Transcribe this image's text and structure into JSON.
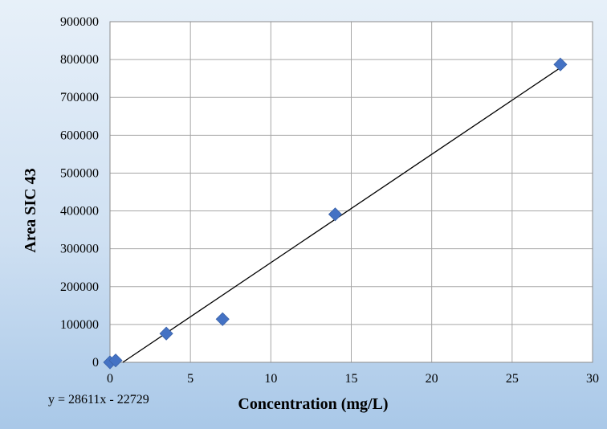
{
  "chart_data": {
    "type": "scatter",
    "xlabel": "Concentration (mg/L)",
    "ylabel": "Area SIC 43",
    "xlim": [
      0,
      30
    ],
    "ylim": [
      0,
      900000
    ],
    "x_ticks": [
      0,
      5,
      10,
      15,
      20,
      25,
      30
    ],
    "y_ticks": [
      0,
      100000,
      200000,
      300000,
      400000,
      500000,
      600000,
      700000,
      800000,
      900000
    ],
    "grid": true,
    "legend": "none",
    "series": [
      {
        "points": [
          {
            "x": 0,
            "y": 0
          },
          {
            "x": 0.35,
            "y": 5000
          },
          {
            "x": 3.5,
            "y": 76000
          },
          {
            "x": 7,
            "y": 114000
          },
          {
            "x": 14,
            "y": 391000
          },
          {
            "x": 28,
            "y": 787000
          }
        ],
        "marker": "diamond",
        "color": "#4472c4"
      }
    ],
    "trendline": {
      "slope": 28611,
      "intercept": -22729,
      "color": "#000000"
    },
    "equation_label": "y = 28611x - 22729",
    "plot_background": "#ffffff",
    "gridline_color": "#a6a6a6"
  }
}
